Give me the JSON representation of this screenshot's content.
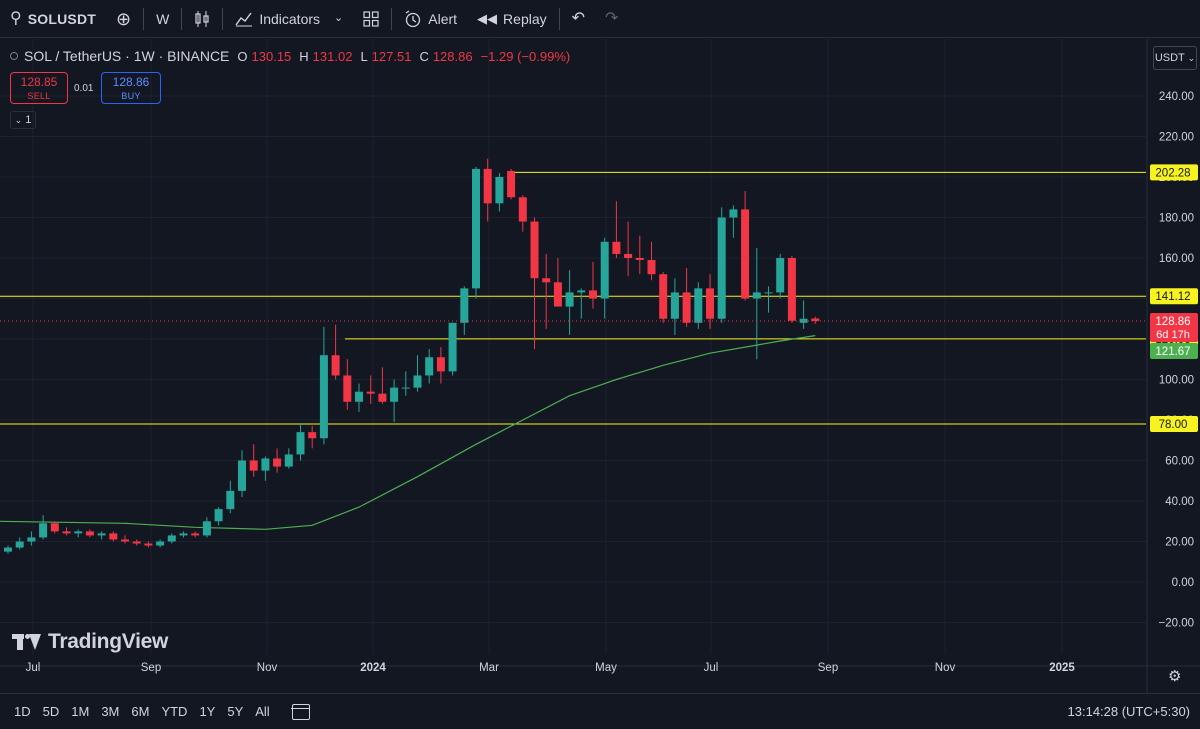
{
  "toolbar": {
    "symbol": "SOLUSDT",
    "interval": "W",
    "indicators_label": "Indicators",
    "alert_label": "Alert",
    "replay_label": "Replay"
  },
  "legend": {
    "symbol_desc": "SOL / TetherUS · 1W · BINANCE",
    "o_label": "O",
    "o_value": "130.15",
    "h_label": "H",
    "h_value": "131.02",
    "l_label": "L",
    "l_value": "127.51",
    "c_label": "C",
    "c_value": "128.86",
    "change": "−1.29 (−0.99%)"
  },
  "trade": {
    "sell_price": "128.85",
    "sell_label": "SELL",
    "spread": "0.01",
    "buy_price": "128.86",
    "buy_label": "BUY"
  },
  "indicator_count": "1",
  "currency": "USDT",
  "brand": "TradingView",
  "ranges": [
    "1D",
    "5D",
    "1M",
    "3M",
    "6M",
    "YTD",
    "1Y",
    "5Y",
    "All"
  ],
  "clock": "13:14:28 (UTC+5:30)",
  "colors": {
    "up": "#26a69a",
    "down": "#f23645",
    "hline": "#f7f321",
    "ma": "#4caf50",
    "bg": "#131722"
  },
  "chart_data": {
    "type": "candlestick",
    "timeframe": "1W",
    "y_axis_ticks": [
      240,
      220,
      200,
      180,
      160,
      140,
      120,
      100,
      80,
      60,
      40,
      20,
      0,
      -20
    ],
    "y_range": [
      -30,
      248
    ],
    "x_axis_labels": [
      "Jul",
      "Sep",
      "Nov",
      "2024",
      "Mar",
      "May",
      "Jul",
      "Sep",
      "Nov",
      "2025"
    ],
    "horizontal_levels": [
      {
        "value": 202.28,
        "label": "202.28"
      },
      {
        "value": 141.12,
        "label": "141.12"
      },
      {
        "value": 120.06,
        "label": "120.06"
      },
      {
        "value": 78.0,
        "label": "78.00"
      }
    ],
    "last_price": {
      "value": 128.86,
      "label": "128.86",
      "countdown": "6d 17h"
    },
    "ma_last": {
      "value": 121.67,
      "label": "121.67"
    },
    "candles": [
      {
        "o": 15,
        "h": 18,
        "l": 14,
        "c": 17
      },
      {
        "o": 17,
        "h": 22,
        "l": 16,
        "c": 20
      },
      {
        "o": 20,
        "h": 25,
        "l": 18,
        "c": 22
      },
      {
        "o": 22,
        "h": 33,
        "l": 21,
        "c": 29
      },
      {
        "o": 29,
        "h": 30,
        "l": 24,
        "c": 25
      },
      {
        "o": 25,
        "h": 27,
        "l": 23,
        "c": 24
      },
      {
        "o": 24,
        "h": 26,
        "l": 22,
        "c": 25
      },
      {
        "o": 25,
        "h": 26,
        "l": 22,
        "c": 23
      },
      {
        "o": 23,
        "h": 25,
        "l": 21,
        "c": 24
      },
      {
        "o": 24,
        "h": 25,
        "l": 20,
        "c": 21
      },
      {
        "o": 21,
        "h": 23,
        "l": 19,
        "c": 20
      },
      {
        "o": 20,
        "h": 21,
        "l": 18,
        "c": 19
      },
      {
        "o": 19,
        "h": 20,
        "l": 17,
        "c": 18
      },
      {
        "o": 18,
        "h": 21,
        "l": 17,
        "c": 20
      },
      {
        "o": 20,
        "h": 24,
        "l": 19,
        "c": 23
      },
      {
        "o": 23,
        "h": 25,
        "l": 22,
        "c": 24
      },
      {
        "o": 24,
        "h": 25,
        "l": 22,
        "c": 23
      },
      {
        "o": 23,
        "h": 32,
        "l": 22,
        "c": 30
      },
      {
        "o": 30,
        "h": 37,
        "l": 28,
        "c": 36
      },
      {
        "o": 36,
        "h": 50,
        "l": 34,
        "c": 45
      },
      {
        "o": 45,
        "h": 65,
        "l": 42,
        "c": 60
      },
      {
        "o": 60,
        "h": 68,
        "l": 52,
        "c": 55
      },
      {
        "o": 55,
        "h": 62,
        "l": 50,
        "c": 61
      },
      {
        "o": 61,
        "h": 66,
        "l": 54,
        "c": 57
      },
      {
        "o": 57,
        "h": 66,
        "l": 56,
        "c": 63
      },
      {
        "o": 63,
        "h": 78,
        "l": 60,
        "c": 74
      },
      {
        "o": 74,
        "h": 77,
        "l": 66,
        "c": 71
      },
      {
        "o": 71,
        "h": 126,
        "l": 68,
        "c": 112
      },
      {
        "o": 112,
        "h": 127,
        "l": 100,
        "c": 102
      },
      {
        "o": 102,
        "h": 110,
        "l": 85,
        "c": 89
      },
      {
        "o": 89,
        "h": 98,
        "l": 84,
        "c": 94
      },
      {
        "o": 94,
        "h": 102,
        "l": 88,
        "c": 93
      },
      {
        "o": 93,
        "h": 106,
        "l": 88,
        "c": 89
      },
      {
        "o": 89,
        "h": 100,
        "l": 79,
        "c": 96
      },
      {
        "o": 96,
        "h": 104,
        "l": 92,
        "c": 96
      },
      {
        "o": 96,
        "h": 112,
        "l": 94,
        "c": 102
      },
      {
        "o": 102,
        "h": 115,
        "l": 98,
        "c": 111
      },
      {
        "o": 111,
        "h": 116,
        "l": 98,
        "c": 104
      },
      {
        "o": 104,
        "h": 128,
        "l": 102,
        "c": 128
      },
      {
        "o": 128,
        "h": 146,
        "l": 122,
        "c": 145
      },
      {
        "o": 145,
        "h": 205,
        "l": 140,
        "c": 204
      },
      {
        "o": 204,
        "h": 209,
        "l": 178,
        "c": 187
      },
      {
        "o": 187,
        "h": 202,
        "l": 183,
        "c": 200
      },
      {
        "o": 203,
        "h": 204,
        "l": 189,
        "c": 190
      },
      {
        "o": 190,
        "h": 191,
        "l": 173,
        "c": 178
      },
      {
        "o": 178,
        "h": 180,
        "l": 115,
        "c": 150
      },
      {
        "o": 150,
        "h": 162,
        "l": 125,
        "c": 148
      },
      {
        "o": 148,
        "h": 160,
        "l": 137,
        "c": 136
      },
      {
        "o": 136,
        "h": 154,
        "l": 122,
        "c": 143
      },
      {
        "o": 143,
        "h": 145,
        "l": 130,
        "c": 144
      },
      {
        "o": 144,
        "h": 158,
        "l": 135,
        "c": 140
      },
      {
        "o": 140,
        "h": 170,
        "l": 130,
        "c": 168
      },
      {
        "o": 168,
        "h": 188,
        "l": 160,
        "c": 162
      },
      {
        "o": 162,
        "h": 178,
        "l": 151,
        "c": 160
      },
      {
        "o": 160,
        "h": 171,
        "l": 152,
        "c": 159
      },
      {
        "o": 159,
        "h": 168,
        "l": 149,
        "c": 152
      },
      {
        "o": 152,
        "h": 153,
        "l": 128,
        "c": 130
      },
      {
        "o": 130,
        "h": 150,
        "l": 122,
        "c": 143
      },
      {
        "o": 143,
        "h": 155,
        "l": 126,
        "c": 128
      },
      {
        "o": 128,
        "h": 148,
        "l": 125,
        "c": 145
      },
      {
        "o": 145,
        "h": 152,
        "l": 125,
        "c": 130
      },
      {
        "o": 130,
        "h": 185,
        "l": 128,
        "c": 180
      },
      {
        "o": 180,
        "h": 186,
        "l": 170,
        "c": 184
      },
      {
        "o": 184,
        "h": 193,
        "l": 139,
        "c": 140
      },
      {
        "o": 140,
        "h": 165,
        "l": 110,
        "c": 143
      },
      {
        "o": 143,
        "h": 146,
        "l": 133,
        "c": 143
      },
      {
        "o": 143,
        "h": 162,
        "l": 140,
        "c": 160
      },
      {
        "o": 160,
        "h": 161,
        "l": 128,
        "c": 129
      },
      {
        "o": 128,
        "h": 139,
        "l": 125,
        "c": 130
      },
      {
        "o": 130.15,
        "h": 131.02,
        "l": 127.51,
        "c": 128.86
      }
    ],
    "ma_points": [
      [
        0,
        30
      ],
      [
        10,
        29
      ],
      [
        16,
        27
      ],
      [
        22,
        26
      ],
      [
        26,
        28
      ],
      [
        30,
        37
      ],
      [
        35,
        52
      ],
      [
        40,
        68
      ],
      [
        44,
        80
      ],
      [
        48,
        92
      ],
      [
        52,
        100
      ],
      [
        56,
        107
      ],
      [
        60,
        113
      ],
      [
        64,
        117
      ],
      [
        66,
        119
      ],
      [
        69,
        121.67
      ]
    ]
  }
}
